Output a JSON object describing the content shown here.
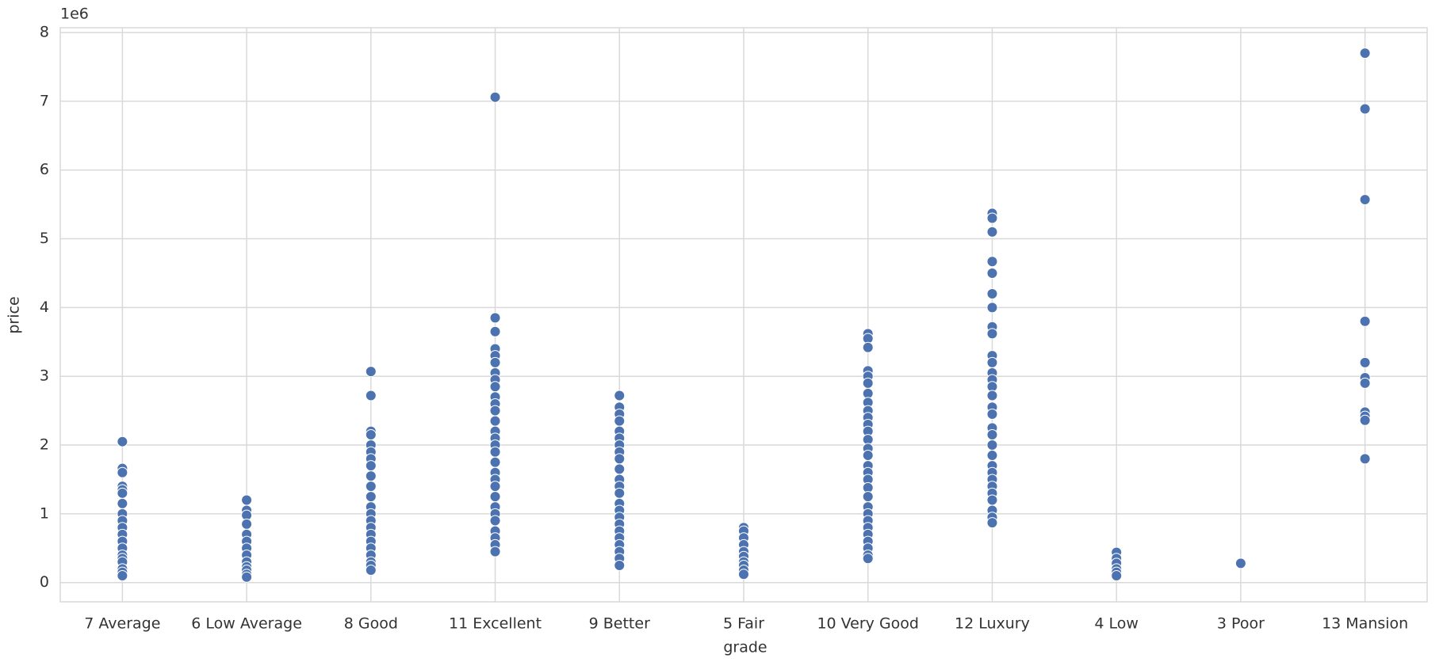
{
  "chart_data": {
    "type": "scatter",
    "x_label": "grade",
    "y_label": "price",
    "y_offset_label": "1e6",
    "categories": [
      "7 Average",
      "6 Low Average",
      "8 Good",
      "11 Excellent",
      "9 Better",
      "5 Fair",
      "10 Very Good",
      "12 Luxury",
      "4 Low",
      "3 Poor",
      "13 Mansion"
    ],
    "values": [
      [
        2.05,
        1.66,
        1.6,
        1.4,
        1.35,
        1.3,
        1.15,
        1.0,
        0.9,
        0.8,
        0.7,
        0.6,
        0.5,
        0.4,
        0.35,
        0.3,
        0.2,
        0.15,
        0.1
      ],
      [
        1.2,
        1.05,
        0.98,
        0.85,
        0.7,
        0.6,
        0.5,
        0.4,
        0.3,
        0.23,
        0.18,
        0.12,
        0.08
      ],
      [
        3.07,
        2.72,
        2.2,
        2.15,
        2.0,
        1.9,
        1.8,
        1.7,
        1.55,
        1.4,
        1.25,
        1.1,
        1.0,
        0.9,
        0.8,
        0.7,
        0.6,
        0.5,
        0.4,
        0.3,
        0.25,
        0.18
      ],
      [
        7.06,
        3.85,
        3.65,
        3.4,
        3.3,
        3.2,
        3.05,
        2.95,
        2.85,
        2.7,
        2.6,
        2.5,
        2.35,
        2.2,
        2.1,
        2.0,
        1.9,
        1.75,
        1.6,
        1.5,
        1.4,
        1.25,
        1.1,
        1.0,
        0.9,
        0.75,
        0.65,
        0.55,
        0.45
      ],
      [
        2.72,
        2.55,
        2.45,
        2.35,
        2.2,
        2.1,
        2.0,
        1.9,
        1.8,
        1.65,
        1.5,
        1.4,
        1.3,
        1.15,
        1.05,
        0.95,
        0.85,
        0.75,
        0.65,
        0.55,
        0.45,
        0.35,
        0.25
      ],
      [
        0.8,
        0.75,
        0.65,
        0.55,
        0.45,
        0.38,
        0.3,
        0.25,
        0.18,
        0.12
      ],
      [
        3.62,
        3.55,
        3.42,
        3.08,
        3.0,
        2.9,
        2.75,
        2.62,
        2.5,
        2.4,
        2.3,
        2.2,
        2.08,
        1.95,
        1.85,
        1.7,
        1.6,
        1.5,
        1.38,
        1.25,
        1.1,
        1.0,
        0.9,
        0.8,
        0.7,
        0.6,
        0.5,
        0.4,
        0.35
      ],
      [
        5.37,
        5.3,
        5.1,
        4.67,
        4.5,
        4.2,
        4.0,
        3.72,
        3.62,
        3.3,
        3.2,
        3.05,
        2.95,
        2.85,
        2.72,
        2.55,
        2.45,
        2.25,
        2.15,
        2.0,
        1.85,
        1.7,
        1.6,
        1.5,
        1.4,
        1.3,
        1.2,
        1.05,
        0.95,
        0.87
      ],
      [
        0.44,
        0.35,
        0.28,
        0.2,
        0.15,
        0.1
      ],
      [
        0.28
      ],
      [
        7.7,
        6.89,
        5.57,
        3.8,
        3.2,
        2.98,
        2.9,
        2.48,
        2.42,
        2.36,
        1.8
      ]
    ],
    "color": "#4c72b0",
    "ylim": [
      -0.28,
      8.07
    ],
    "yticks": [
      0,
      1,
      2,
      3,
      4,
      5,
      6,
      7,
      8
    ],
    "grid": true
  }
}
